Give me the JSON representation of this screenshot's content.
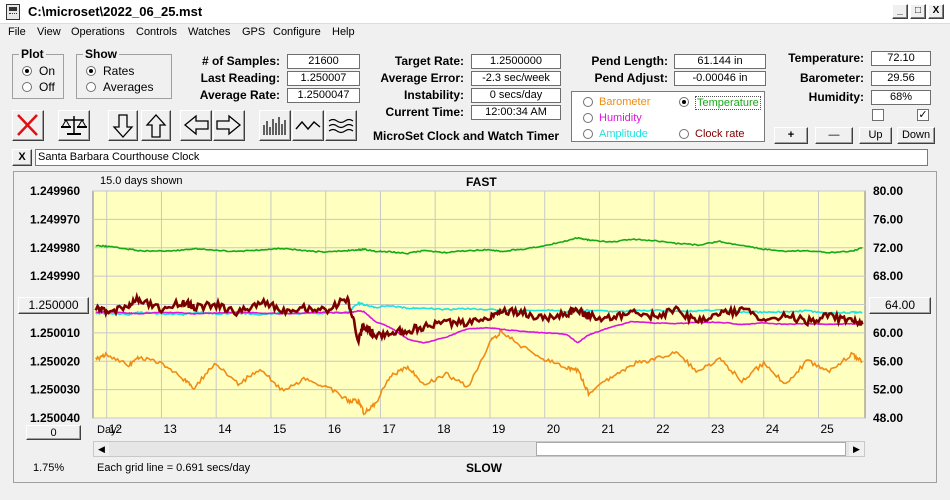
{
  "window": {
    "title": "C:\\microset\\2022_06_25.mst",
    "min": "_",
    "max": "□",
    "close": "X"
  },
  "menu": [
    "File",
    "View",
    "Operations",
    "Controls",
    "Watches",
    "GPS",
    "Configure",
    "Help"
  ],
  "plot_group": {
    "title": "Plot",
    "on": "On",
    "off": "Off",
    "selected": "On"
  },
  "show_group": {
    "title": "Show",
    "rates": "Rates",
    "averages": "Averages",
    "selected": "Rates"
  },
  "stats": {
    "samples_label": "# of Samples:",
    "samples": "21600",
    "last_label": "Last Reading:",
    "last": "1.250007",
    "avg_label": "Average Rate:",
    "avg": "1.2500047"
  },
  "target": {
    "rate_label": "Target Rate:",
    "rate": "1.2500000",
    "error_label": "Average Error:",
    "error": "-2.3 sec/week",
    "instab_label": "Instability:",
    "instab": "0 secs/day",
    "time_label": "Current Time:",
    "time": "12:00:34 AM"
  },
  "pendulum": {
    "length_label": "Pend Length:",
    "length": "61.144 in",
    "adjust_label": "Pend Adjust:",
    "adjust": "-0.00046 in"
  },
  "environment": {
    "temp_label": "Temperature:",
    "temp": "72.10",
    "baro_label": "Barometer:",
    "baro": "29.56",
    "hum_label": "Humidity:",
    "hum": "68%"
  },
  "overlay_options": {
    "barometer": "Barometer",
    "temperature": "Temperature",
    "humidity": "Humidity",
    "amplitude": "Amplitude",
    "clock_rate": "Clock rate",
    "selected": "Temperature"
  },
  "scale_buttons": {
    "plus": "+",
    "minus": "—",
    "up": "Up",
    "down": "Down"
  },
  "app_caption": "MicroSet Clock and Watch Timer",
  "clock_name": "Santa Barbara Courthouse Clock",
  "clear_name_button": "X",
  "chart_header": {
    "days_shown": "15.0 days shown",
    "fast": "FAST",
    "slow": "SLOW"
  },
  "chart_footer": {
    "grid_note": "Each grid line = 0.691 secs/day",
    "percent": "1.75%",
    "day_label": "Day:"
  },
  "left_center_button": "1.250000",
  "right_center_button": "64.00",
  "zero_button": "0",
  "colors": {
    "plot_bg": "#ffffc0",
    "grid": "#c8c8c8",
    "rate": "#7a0000",
    "temperature": "#14aa14",
    "barometer": "#f08c14",
    "humidity": "#dc14dc",
    "amplitude": "#1ee1e1"
  },
  "chart_data": {
    "type": "line",
    "x": [
      11.8,
      12.0,
      12.4,
      12.6,
      13.0,
      13.4,
      13.6,
      14.0,
      14.4,
      14.8,
      15.2,
      15.6,
      16.0,
      16.4,
      16.6,
      16.7,
      16.9,
      17.2,
      17.5,
      17.8,
      18.2,
      18.6,
      19.0,
      19.2,
      19.6,
      20.0,
      20.4,
      20.6,
      20.8,
      21.2,
      21.6,
      22.0,
      22.4,
      22.8,
      23.2,
      23.6,
      24.0,
      24.4,
      24.8,
      25.2,
      25.6,
      25.8
    ],
    "y_left_ticks": [
      "1.249960",
      "1.249970",
      "1.249980",
      "1.249990",
      "1.250000",
      "1.250010",
      "1.250020",
      "1.250030",
      "1.250040"
    ],
    "y_right_ticks": [
      "80.00",
      "76.00",
      "72.00",
      "68.00",
      "64.00",
      "60.00",
      "56.00",
      "52.00",
      "48.00"
    ],
    "x_ticks": [
      "12",
      "13",
      "14",
      "15",
      "16",
      "17",
      "18",
      "19",
      "20",
      "21",
      "22",
      "23",
      "24",
      "25"
    ],
    "left_range": [
      1.24996,
      1.25004
    ],
    "right_range": [
      48,
      80
    ],
    "x_range": [
      11.75,
      25.85
    ],
    "series": [
      {
        "name": "Clock rate",
        "axis": "left",
        "values": [
          1.250001,
          1.250003,
          1.25,
          1.249998,
          1.250002,
          1.249999,
          1.250001,
          1.25,
          1.250003,
          1.249999,
          1.250002,
          1.250001,
          1.250002,
          1.249998,
          1.250013,
          1.250007,
          1.250011,
          1.25001,
          1.250009,
          1.250008,
          1.250006,
          1.250007,
          1.250004,
          1.250002,
          1.250003,
          1.250005,
          1.250003,
          1.250002,
          1.250004,
          1.250005,
          1.250003,
          1.250004,
          1.250002,
          1.250006,
          1.250003,
          1.250002,
          1.250005,
          1.250004,
          1.250006,
          1.250004,
          1.250006,
          1.250007
        ]
      },
      {
        "name": "Temperature",
        "axis": "right",
        "values": [
          72.3,
          72.2,
          71.8,
          71.6,
          71.5,
          71.7,
          71.9,
          71.6,
          71.5,
          71.7,
          71.9,
          71.6,
          71.4,
          71.6,
          71.7,
          71.8,
          71.5,
          71.4,
          71.2,
          71.6,
          71.3,
          71.6,
          71.7,
          71.5,
          71.8,
          72.3,
          73.0,
          73.4,
          73.1,
          72.8,
          73.2,
          73.0,
          72.6,
          72.4,
          72.9,
          72.3,
          71.8,
          71.5,
          71.6,
          71.3,
          71.5,
          72.0
        ]
      },
      {
        "name": "Barometer",
        "axis": "right",
        "values": [
          56.2,
          57.0,
          55.5,
          56.5,
          55.8,
          53.5,
          52.3,
          55.8,
          52.7,
          55.0,
          51.9,
          53.4,
          52.5,
          50.5,
          50.3,
          48.7,
          50.0,
          54.0,
          55.3,
          52.7,
          54.2,
          52.3,
          58.7,
          60.2,
          58.0,
          56.2,
          55.1,
          54.8,
          51.5,
          53.6,
          55.6,
          56.3,
          57.2,
          54.5,
          56.3,
          53.3,
          55.7,
          52.8,
          56.1,
          54.6,
          57.0,
          56.0
        ]
      },
      {
        "name": "Humidity",
        "axis": "right",
        "values": [
          62.9,
          63.0,
          62.8,
          62.7,
          62.9,
          62.8,
          62.7,
          62.8,
          62.9,
          62.8,
          62.7,
          62.8,
          62.9,
          62.8,
          63.1,
          63.0,
          61.6,
          60.7,
          59.1,
          58.6,
          59.4,
          60.6,
          60.7,
          60.5,
          60.2,
          60.0,
          59.8,
          58.6,
          59.7,
          60.8,
          61.6,
          61.4,
          61.3,
          61.5,
          61.5,
          61.2,
          61.4,
          61.2,
          61.3,
          61.2,
          61.3,
          61.2
        ]
      },
      {
        "name": "Amplitude",
        "axis": "right",
        "values": [
          62.7,
          62.8,
          62.6,
          62.9,
          62.7,
          62.6,
          62.9,
          62.7,
          62.8,
          62.6,
          62.8,
          62.7,
          62.8,
          62.9,
          64.2,
          64.0,
          63.6,
          63.8,
          63.5,
          63.5,
          63.3,
          63.4,
          63.3,
          63.2,
          63.1,
          63.2,
          63.0,
          63.1,
          63.2,
          63.0,
          63.1,
          63.2,
          63.0,
          63.1,
          63.2,
          63.0,
          62.9,
          63.0,
          63.1,
          62.8,
          62.9,
          62.9
        ]
      }
    ]
  }
}
